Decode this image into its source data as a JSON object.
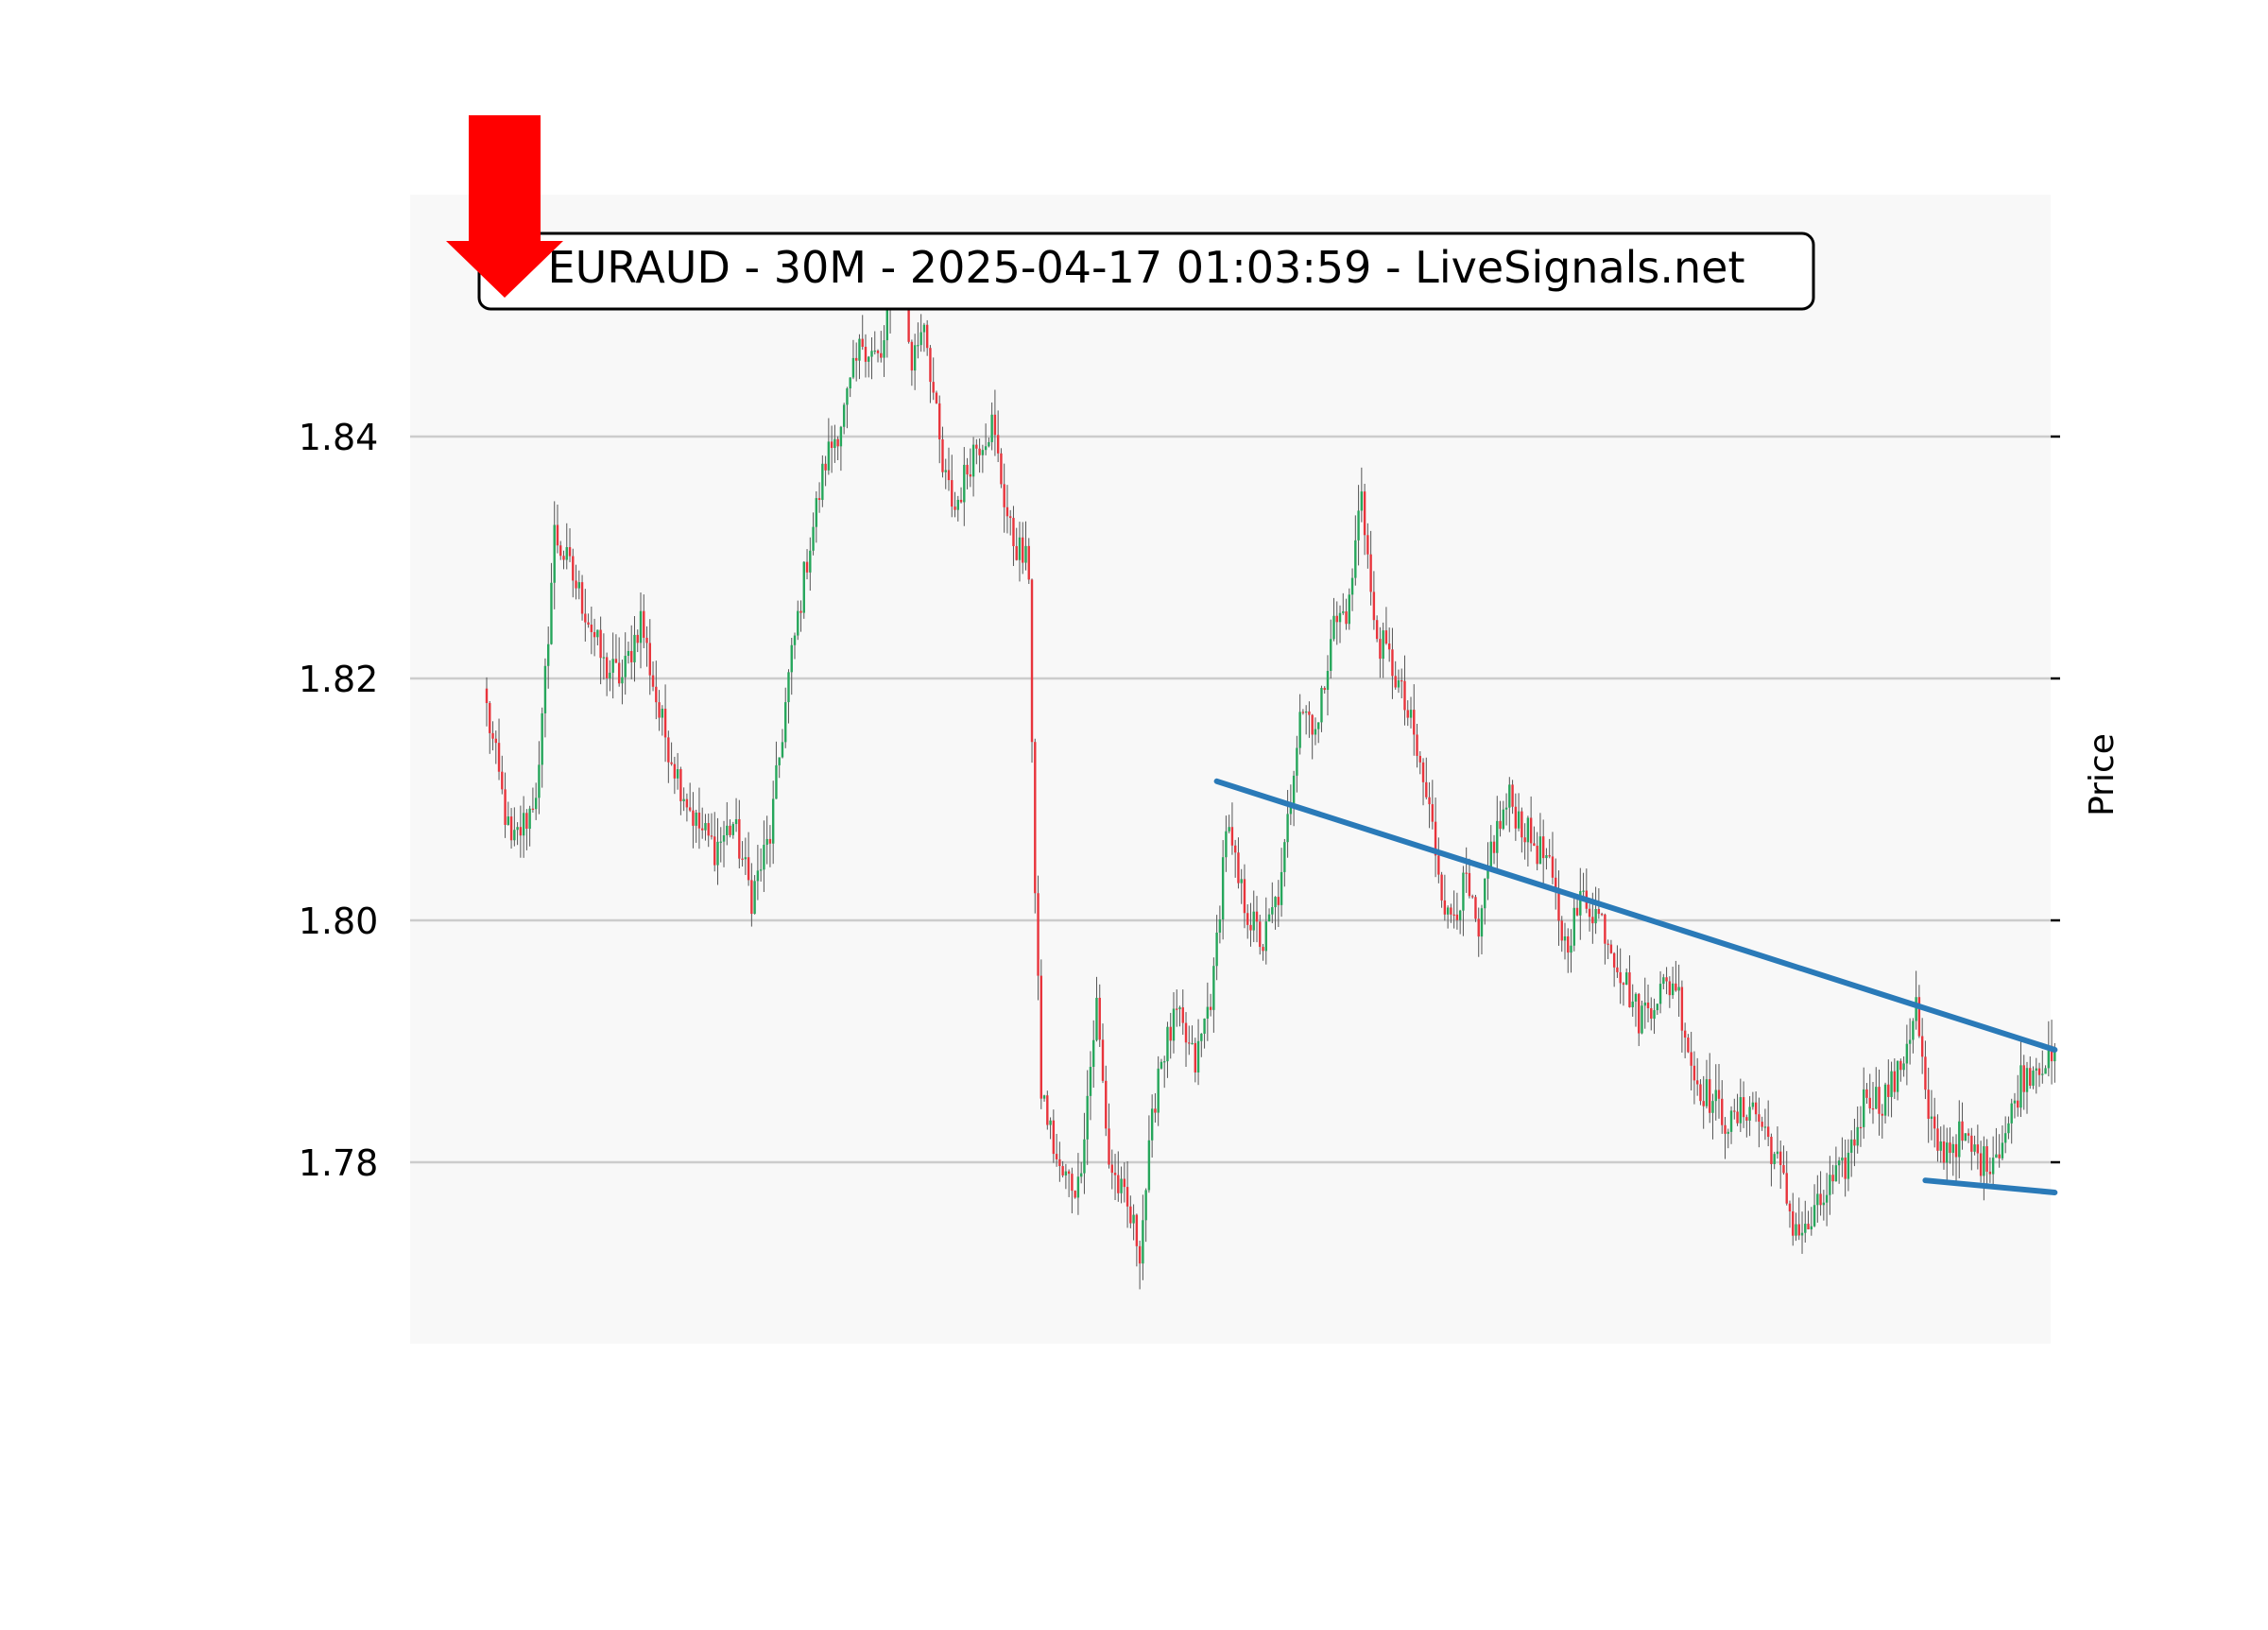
{
  "chart_data": {
    "type": "candlestick",
    "title": "EURAUD - 30M - 2025-04-17 01:03:59 - LiveSignals.net",
    "xlabel": "",
    "ylabel": "Price",
    "ylim": [
      1.765,
      1.86
    ],
    "grid": true,
    "yticks": [
      1.78,
      1.8,
      1.82,
      1.84
    ],
    "ytick_labels": [
      "1.78",
      "1.80",
      "1.82",
      "1.84"
    ],
    "signal": "sell",
    "colors": {
      "up": "#26a65b",
      "down": "#e8343c",
      "trendline": "#2a7ab8",
      "signal_arrow": "#ff0000",
      "grid": "#cccccc",
      "plot_bg": "#f8f8f8"
    },
    "close_path": [
      [
        0,
        1.8175
      ],
      [
        8,
        1.806
      ],
      [
        14,
        1.809
      ],
      [
        17,
        1.812
      ],
      [
        22,
        1.832
      ],
      [
        27,
        1.829
      ],
      [
        33,
        1.825
      ],
      [
        38,
        1.821
      ],
      [
        44,
        1.82
      ],
      [
        50,
        1.825
      ],
      [
        56,
        1.817
      ],
      [
        62,
        1.812
      ],
      [
        68,
        1.808
      ],
      [
        74,
        1.806
      ],
      [
        80,
        1.808
      ],
      [
        86,
        1.802
      ],
      [
        92,
        1.807
      ],
      [
        98,
        1.82
      ],
      [
        104,
        1.83
      ],
      [
        110,
        1.838
      ],
      [
        116,
        1.842
      ],
      [
        122,
        1.848
      ],
      [
        128,
        1.846
      ],
      [
        132,
        1.854
      ],
      [
        134,
        1.854
      ],
      [
        138,
        1.846
      ],
      [
        142,
        1.85
      ],
      [
        148,
        1.837
      ],
      [
        152,
        1.834
      ],
      [
        158,
        1.839
      ],
      [
        164,
        1.841
      ],
      [
        170,
        1.832
      ],
      [
        174,
        1.83
      ],
      [
        176,
        1.829
      ],
      [
        178,
        1.802
      ],
      [
        180,
        1.786
      ],
      [
        186,
        1.779
      ],
      [
        192,
        1.778
      ],
      [
        198,
        1.793
      ],
      [
        202,
        1.78
      ],
      [
        208,
        1.776
      ],
      [
        212,
        1.773
      ],
      [
        218,
        1.788
      ],
      [
        224,
        1.792
      ],
      [
        230,
        1.788
      ],
      [
        236,
        1.795
      ],
      [
        240,
        1.808
      ],
      [
        244,
        1.803
      ],
      [
        248,
        1.8
      ],
      [
        252,
        1.798
      ],
      [
        258,
        1.803
      ],
      [
        264,
        1.818
      ],
      [
        270,
        1.816
      ],
      [
        274,
        1.824
      ],
      [
        280,
        1.826
      ],
      [
        284,
        1.836
      ],
      [
        288,
        1.824
      ],
      [
        294,
        1.821
      ],
      [
        300,
        1.816
      ],
      [
        306,
        1.809
      ],
      [
        312,
        1.8
      ],
      [
        318,
        1.803
      ],
      [
        322,
        1.798
      ],
      [
        326,
        1.806
      ],
      [
        332,
        1.81
      ],
      [
        338,
        1.807
      ],
      [
        344,
        1.805
      ],
      [
        350,
        1.798
      ],
      [
        356,
        1.802
      ],
      [
        362,
        1.8
      ],
      [
        368,
        1.796
      ],
      [
        374,
        1.792
      ],
      [
        380,
        1.794
      ],
      [
        386,
        1.795
      ],
      [
        392,
        1.787
      ],
      [
        398,
        1.785
      ],
      [
        404,
        1.783
      ],
      [
        410,
        1.785
      ],
      [
        416,
        1.782
      ],
      [
        420,
        1.779
      ],
      [
        424,
        1.775
      ],
      [
        428,
        1.774
      ],
      [
        432,
        1.776
      ],
      [
        436,
        1.778
      ],
      [
        440,
        1.779
      ],
      [
        444,
        1.782
      ],
      [
        448,
        1.786
      ],
      [
        452,
        1.785
      ],
      [
        458,
        1.787
      ],
      [
        464,
        1.793
      ],
      [
        468,
        1.783
      ],
      [
        472,
        1.781
      ],
      [
        478,
        1.782
      ],
      [
        482,
        1.781
      ],
      [
        486,
        1.78
      ],
      [
        490,
        1.781
      ],
      [
        494,
        1.783
      ],
      [
        498,
        1.787
      ],
      [
        504,
        1.7885
      ],
      [
        509,
        1.788
      ]
    ],
    "trendlines": [
      {
        "name": "resistance",
        "points": [
          [
            237,
            1.8115
          ],
          [
            509,
            1.7893
          ]
        ]
      },
      {
        "name": "support",
        "points": [
          [
            467,
            1.7785
          ],
          [
            509,
            1.7775
          ]
        ]
      }
    ]
  }
}
